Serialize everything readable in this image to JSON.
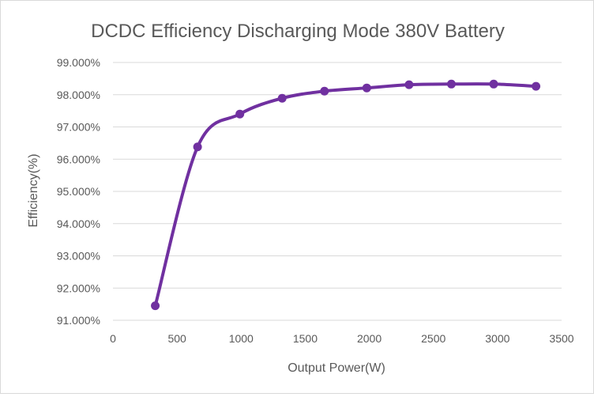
{
  "chart_data": {
    "type": "line",
    "title": "DCDC Efficiency Discharging Mode 380V Battery",
    "xlabel": "Output Power(W)",
    "ylabel": "Efficiency(%)",
    "xlim": [
      0,
      3500
    ],
    "ylim": [
      91,
      99
    ],
    "grid": true,
    "smooth": true,
    "x_ticks": [
      "0",
      "500",
      "1000",
      "1500",
      "2000",
      "2500",
      "3000",
      "3500"
    ],
    "y_ticks": [
      "91.000%",
      "92.000%",
      "93.000%",
      "94.000%",
      "95.000%",
      "96.000%",
      "97.000%",
      "98.000%",
      "99.000%"
    ],
    "series": [
      {
        "name": "Efficiency",
        "color": "#7030a0",
        "x": [
          330,
          660,
          990,
          1320,
          1650,
          1980,
          2310,
          2640,
          2970,
          3300
        ],
        "values": [
          91.45,
          96.38,
          97.4,
          97.89,
          98.11,
          98.21,
          98.31,
          98.33,
          98.33,
          98.26
        ]
      }
    ]
  }
}
